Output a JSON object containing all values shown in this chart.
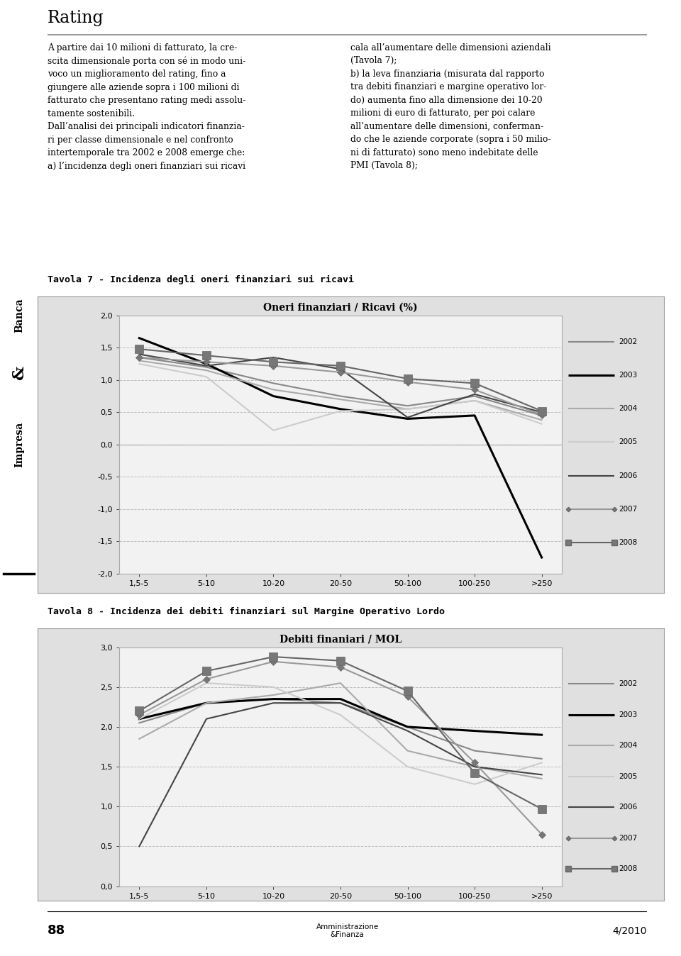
{
  "categories": [
    "1,5-5",
    "5-10",
    "10-20",
    "20-50",
    "50-100",
    "100-250",
    ">250"
  ],
  "chart1_title": "Oneri finanziari / Ricavi (%)",
  "chart1_ylim": [
    -2.0,
    2.0
  ],
  "chart1_yticks": [
    -2.0,
    -1.5,
    -1.0,
    -0.5,
    0.0,
    0.5,
    1.0,
    1.5,
    2.0
  ],
  "chart1_series": {
    "2002": [
      1.35,
      1.2,
      0.95,
      0.75,
      0.6,
      0.75,
      0.45
    ],
    "2003": [
      1.65,
      1.25,
      0.75,
      0.55,
      0.4,
      0.45,
      -1.75
    ],
    "2004": [
      1.3,
      1.15,
      0.85,
      0.7,
      0.55,
      0.68,
      0.38
    ],
    "2005": [
      1.25,
      1.05,
      0.22,
      0.52,
      0.55,
      0.68,
      0.32
    ],
    "2006": [
      1.4,
      1.22,
      1.35,
      1.17,
      0.42,
      0.78,
      0.5
    ],
    "2007": [
      1.35,
      1.28,
      1.22,
      1.12,
      0.97,
      0.85,
      0.46
    ],
    "2008": [
      1.48,
      1.38,
      1.28,
      1.22,
      1.02,
      0.95,
      0.52
    ]
  },
  "chart2_title": "Debiti finaniari / MOL",
  "chart2_ylim": [
    0.0,
    3.0
  ],
  "chart2_yticks": [
    0.0,
    0.5,
    1.0,
    1.5,
    2.0,
    2.5,
    3.0
  ],
  "chart2_series": {
    "2002": [
      2.05,
      2.3,
      2.35,
      2.3,
      2.0,
      1.7,
      1.6
    ],
    "2003": [
      2.1,
      2.3,
      2.35,
      2.35,
      2.0,
      1.95,
      1.9
    ],
    "2004": [
      1.85,
      2.3,
      2.4,
      2.55,
      1.7,
      1.5,
      1.35
    ],
    "2005": [
      2.1,
      2.55,
      2.5,
      2.15,
      1.5,
      1.28,
      1.55
    ],
    "2006": [
      0.5,
      2.1,
      2.3,
      2.3,
      1.95,
      1.5,
      1.4
    ],
    "2007": [
      2.15,
      2.6,
      2.82,
      2.75,
      2.38,
      1.55,
      0.65
    ],
    "2008": [
      2.2,
      2.7,
      2.88,
      2.83,
      2.45,
      1.42,
      0.97
    ]
  },
  "legend_years": [
    "2002",
    "2003",
    "2004",
    "2005",
    "2006",
    "2007",
    "2008"
  ],
  "series_styles": {
    "2002": {
      "color": "#888888",
      "linewidth": 1.5,
      "linestyle": "-",
      "marker": null,
      "markersize": 0
    },
    "2003": {
      "color": "#000000",
      "linewidth": 2.2,
      "linestyle": "-",
      "marker": null,
      "markersize": 0
    },
    "2004": {
      "color": "#aaaaaa",
      "linewidth": 1.5,
      "linestyle": "-",
      "marker": null,
      "markersize": 0
    },
    "2005": {
      "color": "#cccccc",
      "linewidth": 1.5,
      "linestyle": "-",
      "marker": null,
      "markersize": 0
    },
    "2006": {
      "color": "#444444",
      "linewidth": 1.5,
      "linestyle": "-",
      "marker": null,
      "markersize": 0
    },
    "2007": {
      "color": "#999999",
      "linewidth": 1.5,
      "linestyle": "-",
      "marker": "D",
      "markersize": 5
    },
    "2008": {
      "color": "#666666",
      "linewidth": 1.5,
      "linestyle": "-",
      "marker": "s",
      "markersize": 9
    }
  },
  "table7_title": "Tavola 7 - Incidenza degli oneri finanziari sui ricavi",
  "table8_title": "Tavola 8 - Incidenza dei debiti finanziari sul Margine Operativo Lordo",
  "body_text_left": "A partire dai 10 milioni di fatturato, la cre-\nscita dimensionale porta con sé in modo uni-\nvoco un miglioramento del rating, fino a\ngiungere alle aziende sopra i 100 milioni di\nfatturato che presentano rating medi assolu-\ntamente sostenibili.\nDall’analisi dei principali indicatori finanzia-\nri per classe dimensionale e nel confronto\nintertemporale tra 2002 e 2008 emerge che:\na) l’incidenza degli oneri finanziari sui ricavi",
  "body_text_right": "cala all’aumentare delle dimensioni aziendali\n(Tavola 7);\nb) la leva finanziaria (misurata dal rapporto\ntra debiti finanziari e margine operativo lor-\ndo) aumenta fino alla dimensione dei 10-20\nmilioni di euro di fatturato, per poi calare\nall’aumentare delle dimensioni, conferman-\ndo che le aziende corporate (sopra i 50 milio-\nni di fatturato) sono meno indebitate delle\nPMI (Tavola 8);",
  "footer_page": "88",
  "footer_journal": "Amministrazione\n&Finanza",
  "footer_issue": "4/2010",
  "sidebar_text": "Banca&Impresa",
  "page_title": "Rating"
}
